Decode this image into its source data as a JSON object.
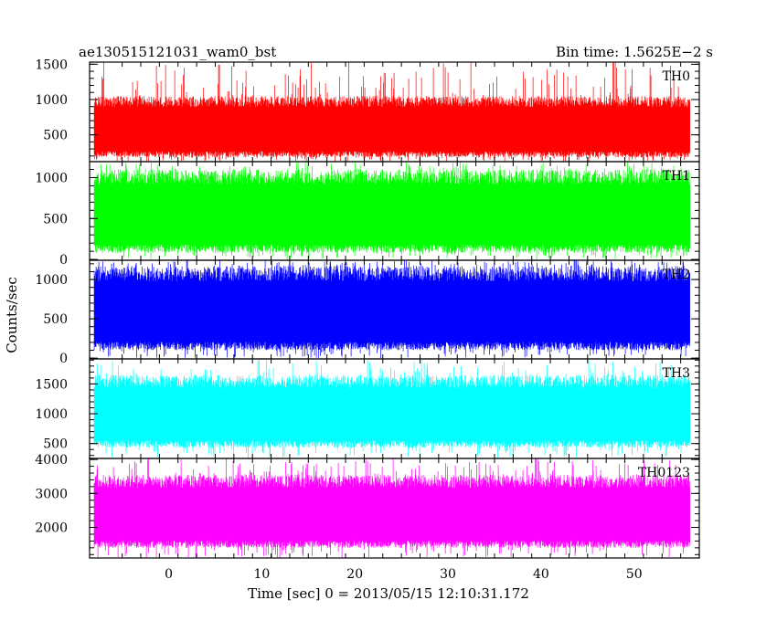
{
  "header": {
    "left_title": "ae130515121031_wam0_bst",
    "right_title": "Bin time: 1.5625E−2 s"
  },
  "axes": {
    "xlabel": "Time [sec] 0 = 2013/05/15 12:10:31.172",
    "ylabel": "Counts/sec"
  },
  "chart_data": {
    "type": "line",
    "title": "ae130515121031_wam0_bst",
    "subtitle": "Bin time: 1.5625E−2 s",
    "xlabel": "Time [sec] 0 = 2013/05/15 12:10:31.172",
    "ylabel": "Counts/sec",
    "xlim": [
      -8.5,
      57
    ],
    "x_ticks": [
      0,
      10,
      20,
      30,
      40,
      50
    ],
    "data_x_range": [
      -8,
      56
    ],
    "bin_time": 0.015625,
    "panels": [
      {
        "label": "TH0",
        "color": "#ff0000",
        "ylim": [
          120,
          1530
        ],
        "y_ticks": [
          500,
          1000,
          1500
        ],
        "typical_low": 180,
        "typical_high": 1050,
        "min": 120,
        "max": 1530
      },
      {
        "label": "TH1",
        "color": "#00ff00",
        "ylim": [
          -10,
          1195
        ],
        "y_ticks": [
          0,
          500,
          1000
        ],
        "typical_low": 80,
        "typical_high": 1100,
        "min": 0,
        "max": 1195
      },
      {
        "label": "TH2",
        "color": "#0000ff",
        "ylim": [
          -10,
          1245
        ],
        "y_ticks": [
          0,
          500,
          1000
        ],
        "typical_low": 100,
        "typical_high": 1170,
        "min": 0,
        "max": 1245
      },
      {
        "label": "TH3",
        "color": "#00ffff",
        "ylim": [
          250,
          1920
        ],
        "y_ticks": [
          500,
          1000,
          1500
        ],
        "typical_low": 430,
        "typical_high": 1650,
        "min": 250,
        "max": 1920
      },
      {
        "label": "TH0123",
        "color": "#ff00ff",
        "ylim": [
          1100,
          4030
        ],
        "y_ticks": [
          2000,
          3000,
          4000
        ],
        "typical_low": 1400,
        "typical_high": 3550,
        "min": 1100,
        "max": 4030
      }
    ]
  }
}
